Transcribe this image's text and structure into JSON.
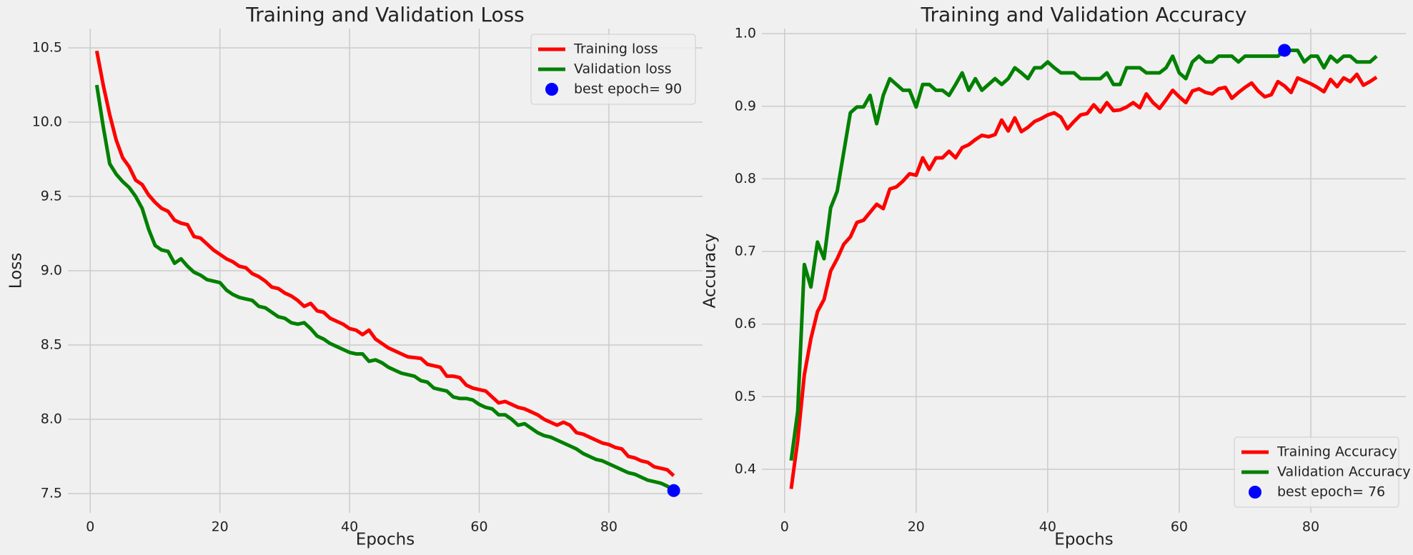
{
  "chart_data": [
    {
      "type": "line",
      "title": "Training and Validation Loss",
      "x_label": "Epochs",
      "y_label": "Loss",
      "x": [
        1,
        2,
        3,
        4,
        5,
        6,
        7,
        8,
        9,
        10,
        11,
        12,
        13,
        14,
        15,
        16,
        17,
        18,
        19,
        20,
        21,
        22,
        23,
        24,
        25,
        26,
        27,
        28,
        29,
        30,
        31,
        32,
        33,
        34,
        35,
        36,
        37,
        38,
        39,
        40,
        41,
        42,
        43,
        44,
        45,
        46,
        47,
        48,
        49,
        50,
        51,
        52,
        53,
        54,
        55,
        56,
        57,
        58,
        59,
        60,
        61,
        62,
        63,
        64,
        65,
        66,
        67,
        68,
        69,
        70,
        71,
        72,
        73,
        74,
        75,
        76,
        77,
        78,
        79,
        80,
        81,
        82,
        83,
        84,
        85,
        86,
        87,
        88,
        89,
        90
      ],
      "series": [
        {
          "name": "Training loss",
          "color": "red",
          "values": [
            10.48,
            10.25,
            10.05,
            9.88,
            9.76,
            9.7,
            9.61,
            9.58,
            9.51,
            9.46,
            9.42,
            9.4,
            9.34,
            9.32,
            9.31,
            9.23,
            9.22,
            9.18,
            9.14,
            9.11,
            9.08,
            9.06,
            9.03,
            9.02,
            8.98,
            8.96,
            8.93,
            8.89,
            8.88,
            8.85,
            8.83,
            8.8,
            8.76,
            8.78,
            8.73,
            8.72,
            8.68,
            8.66,
            8.64,
            8.61,
            8.6,
            8.57,
            8.6,
            8.54,
            8.51,
            8.48,
            8.46,
            8.44,
            8.42,
            8.415,
            8.41,
            8.37,
            8.36,
            8.35,
            8.29,
            8.29,
            8.28,
            8.23,
            8.21,
            8.2,
            8.19,
            8.15,
            8.11,
            8.12,
            8.1,
            8.08,
            8.07,
            8.05,
            8.03,
            8.0,
            7.98,
            7.96,
            7.98,
            7.96,
            7.91,
            7.9,
            7.88,
            7.86,
            7.84,
            7.83,
            7.81,
            7.8,
            7.75,
            7.74,
            7.72,
            7.71,
            7.68,
            7.67,
            7.66,
            7.62
          ]
        },
        {
          "name": "Validation loss",
          "color": "green",
          "values": [
            10.25,
            9.97,
            9.72,
            9.65,
            9.6,
            9.56,
            9.5,
            9.42,
            9.28,
            9.17,
            9.14,
            9.13,
            9.05,
            9.08,
            9.03,
            8.99,
            8.97,
            8.94,
            8.93,
            8.92,
            8.87,
            8.84,
            8.82,
            8.81,
            8.8,
            8.76,
            8.75,
            8.72,
            8.69,
            8.68,
            8.65,
            8.64,
            8.65,
            8.61,
            8.56,
            8.54,
            8.51,
            8.49,
            8.47,
            8.45,
            8.44,
            8.44,
            8.39,
            8.4,
            8.38,
            8.35,
            8.33,
            8.31,
            8.3,
            8.29,
            8.26,
            8.25,
            8.21,
            8.2,
            8.19,
            8.15,
            8.14,
            8.14,
            8.13,
            8.1,
            8.08,
            8.07,
            8.03,
            8.03,
            8.0,
            7.96,
            7.97,
            7.94,
            7.91,
            7.89,
            7.88,
            7.86,
            7.84,
            7.82,
            7.8,
            7.77,
            7.75,
            7.73,
            7.72,
            7.7,
            7.68,
            7.66,
            7.64,
            7.63,
            7.61,
            7.59,
            7.58,
            7.57,
            7.55,
            7.52
          ]
        }
      ],
      "best": {
        "name": "best epoch= 90",
        "color": "blue",
        "x": 90,
        "y": 7.52
      },
      "xlim": [
        -3.45,
        94.45
      ],
      "xticks": [
        0,
        20,
        40,
        60,
        80
      ],
      "ylim": [
        7.37,
        10.63
      ],
      "yticks": [
        7.5,
        {
          "value": 8,
          "label": "8.0"
        },
        8.5,
        {
          "value": 9,
          "label": "9.0"
        },
        9.5,
        {
          "value": 10,
          "label": "10.0"
        },
        10.5
      ],
      "grid": true,
      "legend": "upper right"
    },
    {
      "type": "line",
      "title": "Training and Validation Accuracy",
      "x_label": "Epochs",
      "y_label": "Accuracy",
      "x": [
        1,
        2,
        3,
        4,
        5,
        6,
        7,
        8,
        9,
        10,
        11,
        12,
        13,
        14,
        15,
        16,
        17,
        18,
        19,
        20,
        21,
        22,
        23,
        24,
        25,
        26,
        27,
        28,
        29,
        30,
        31,
        32,
        33,
        34,
        35,
        36,
        37,
        38,
        39,
        40,
        41,
        42,
        43,
        44,
        45,
        46,
        47,
        48,
        49,
        50,
        51,
        52,
        53,
        54,
        55,
        56,
        57,
        58,
        59,
        60,
        61,
        62,
        63,
        64,
        65,
        66,
        67,
        68,
        69,
        70,
        71,
        72,
        73,
        74,
        75,
        76,
        77,
        78,
        79,
        80,
        81,
        82,
        83,
        84,
        85,
        86,
        87,
        88,
        89,
        90
      ],
      "series": [
        {
          "name": "Training Accuracy",
          "color": "red",
          "values": [
            0.373,
            0.44,
            0.53,
            0.58,
            0.617,
            0.634,
            0.673,
            0.69,
            0.71,
            0.72,
            0.74,
            0.743,
            0.754,
            0.765,
            0.759,
            0.786,
            0.789,
            0.797,
            0.807,
            0.805,
            0.829,
            0.813,
            0.829,
            0.829,
            0.838,
            0.829,
            0.843,
            0.847,
            0.854,
            0.86,
            0.858,
            0.861,
            0.881,
            0.866,
            0.884,
            0.865,
            0.871,
            0.879,
            0.883,
            0.888,
            0.891,
            0.885,
            0.869,
            0.879,
            0.888,
            0.89,
            0.902,
            0.892,
            0.905,
            0.894,
            0.895,
            0.899,
            0.905,
            0.898,
            0.917,
            0.905,
            0.897,
            0.909,
            0.922,
            0.913,
            0.905,
            0.921,
            0.924,
            0.919,
            0.917,
            0.924,
            0.926,
            0.911,
            0.919,
            0.926,
            0.932,
            0.921,
            0.913,
            0.916,
            0.934,
            0.928,
            0.919,
            0.939,
            0.935,
            0.931,
            0.926,
            0.92,
            0.937,
            0.927,
            0.939,
            0.934,
            0.944,
            0.929,
            0.934,
            0.94
          ]
        },
        {
          "name": "Validation Accuracy",
          "color": "green",
          "values": [
            0.412,
            0.48,
            0.682,
            0.651,
            0.713,
            0.69,
            0.76,
            0.783,
            0.837,
            0.891,
            0.899,
            0.899,
            0.915,
            0.876,
            0.915,
            0.938,
            0.93,
            0.922,
            0.922,
            0.899,
            0.93,
            0.93,
            0.922,
            0.922,
            0.915,
            0.93,
            0.946,
            0.922,
            0.938,
            0.922,
            0.93,
            0.938,
            0.93,
            0.938,
            0.953,
            0.946,
            0.938,
            0.953,
            0.953,
            0.961,
            0.953,
            0.946,
            0.946,
            0.946,
            0.938,
            0.938,
            0.938,
            0.938,
            0.946,
            0.93,
            0.93,
            0.953,
            0.953,
            0.953,
            0.946,
            0.946,
            0.946,
            0.953,
            0.969,
            0.946,
            0.938,
            0.961,
            0.969,
            0.961,
            0.961,
            0.969,
            0.969,
            0.969,
            0.961,
            0.969,
            0.969,
            0.969,
            0.969,
            0.969,
            0.969,
            0.977,
            0.977,
            0.977,
            0.961,
            0.969,
            0.969,
            0.953,
            0.969,
            0.961,
            0.969,
            0.969,
            0.961,
            0.961,
            0.961,
            0.969
          ]
        }
      ],
      "best": {
        "name": "best epoch= 76",
        "color": "blue",
        "x": 76,
        "y": 0.977
      },
      "xlim": [
        -3.45,
        94.45
      ],
      "xticks": [
        0,
        20,
        40,
        60,
        80
      ],
      "ylim": [
        0.34,
        1.007
      ],
      "yticks": [
        0.4,
        0.5,
        0.6,
        0.7,
        0.8,
        0.9,
        {
          "value": 1,
          "label": "1.0"
        }
      ],
      "grid": true,
      "legend": "lower right"
    }
  ]
}
